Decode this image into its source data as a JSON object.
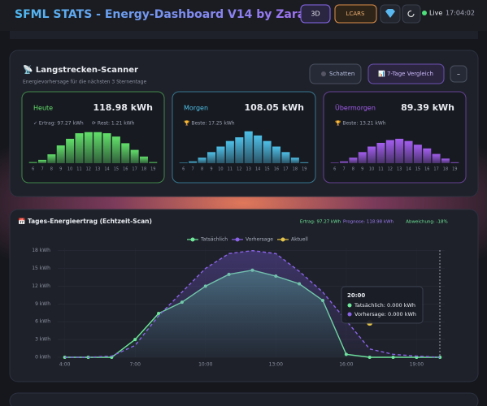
{
  "header": {
    "title": "SFML STATS - Energy-Dashboard V14 by Zara",
    "buttons": [
      "3D",
      "LCARS"
    ],
    "live": "Live",
    "time": "17:04:02"
  },
  "scanner": {
    "title": "📡 Langstrecken-Scanner",
    "subtitle": "Energievorhersage für die nächsten 3 Sternentage",
    "buttons": [
      "Schatten",
      "📊 7-Tage Vergleich",
      "–"
    ]
  },
  "chart_data": [
    {
      "type": "bar",
      "title": "Heute",
      "total": "118.98 kWh",
      "notes": [
        "✓ Ertrag: 97.27 kWh",
        "⟳ Rest: 1.21 kWh"
      ],
      "color": "#62e06a",
      "categories": [
        "6",
        "7",
        "8",
        "9",
        "10",
        "11",
        "12",
        "13",
        "14",
        "15",
        "16",
        "17",
        "18",
        "19"
      ],
      "values": [
        0.5,
        1.5,
        4,
        8,
        11,
        13.5,
        14,
        14,
        13.5,
        12,
        9,
        6,
        3,
        0.5
      ],
      "ylim": [
        0,
        15
      ]
    },
    {
      "type": "bar",
      "title": "Morgen",
      "total": "108.05 kWh",
      "notes": [
        "🏆 Beste: 17.25 kWh"
      ],
      "color": "#4fc0e8",
      "categories": [
        "6",
        "7",
        "8",
        "9",
        "10",
        "11",
        "12",
        "13",
        "14",
        "15",
        "16",
        "17",
        "18",
        "19"
      ],
      "values": [
        0.3,
        1,
        3,
        6,
        9,
        12,
        14,
        17.25,
        15,
        12,
        9,
        6,
        3,
        0.5
      ],
      "ylim": [
        0,
        18
      ]
    },
    {
      "type": "bar",
      "title": "Übermorgen",
      "total": "89.39 kWh",
      "notes": [
        "🏆 Beste: 13.21 kWh"
      ],
      "color": "#a45ef0",
      "categories": [
        "6",
        "7",
        "8",
        "9",
        "10",
        "11",
        "12",
        "13",
        "14",
        "15",
        "16",
        "17",
        "18",
        "19"
      ],
      "values": [
        0.3,
        1,
        3,
        6,
        9,
        11,
        12.5,
        13.21,
        12,
        10,
        8,
        5,
        2.5,
        0.5
      ],
      "ylim": [
        0,
        18
      ]
    },
    {
      "type": "line",
      "title": "📅 Tages-Energieertrag (Echtzeit-Scan)",
      "stats": [
        "Ertrag: 97.27 kWh",
        "Prognose: 118.98 kWh",
        "Abweichung: -18%"
      ],
      "x": [
        4,
        5,
        6,
        7,
        8,
        9,
        10,
        11,
        12,
        13,
        14,
        15,
        16,
        17,
        18,
        19,
        20
      ],
      "series": [
        {
          "name": "Tatsächlich",
          "color": "#6ee89a",
          "values": [
            0,
            0,
            0,
            3,
            7.4,
            9.3,
            12,
            14,
            14.7,
            13.7,
            12.4,
            9.6,
            0.5,
            0,
            0,
            0,
            0
          ]
        },
        {
          "name": "Vorhersage",
          "color": "#8a63e8",
          "dashed": true,
          "values": [
            0,
            0,
            0.2,
            2,
            7,
            11,
            15,
            17.5,
            18,
            17.5,
            14.5,
            11,
            6.2,
            1.4,
            0.5,
            0.2,
            0
          ]
        },
        {
          "name": "Aktuell",
          "color": "#e6c44a",
          "x": [
            17
          ],
          "values": [
            5.8
          ]
        }
      ],
      "xlim": [
        3.7,
        20.2
      ],
      "ylim": [
        0,
        18.5
      ],
      "xticks": [
        {
          "value": 4,
          "label": "4:00"
        },
        {
          "value": 7,
          "label": "7:00"
        },
        {
          "value": 10,
          "label": "10:00"
        },
        {
          "value": 13,
          "label": "13:00"
        },
        {
          "value": 16,
          "label": "16:00"
        },
        {
          "value": 19,
          "label": "19:00"
        }
      ],
      "yticks": [
        {
          "value": 0,
          "label": "0 kWh"
        },
        {
          "value": 3,
          "label": "3 kWh"
        },
        {
          "value": 6,
          "label": "6 kWh"
        },
        {
          "value": 9,
          "label": "9 kWh"
        },
        {
          "value": 12,
          "label": "12 kWh"
        },
        {
          "value": 15,
          "label": "15 kWh"
        },
        {
          "value": 18,
          "label": "18 kWh"
        }
      ],
      "grid": true,
      "legend": "top",
      "tooltip": {
        "title": "20:00",
        "lines": [
          "Tatsächlich: 0.000 kWh",
          "Vorhersage: 0.000 kWh"
        ]
      }
    }
  ]
}
